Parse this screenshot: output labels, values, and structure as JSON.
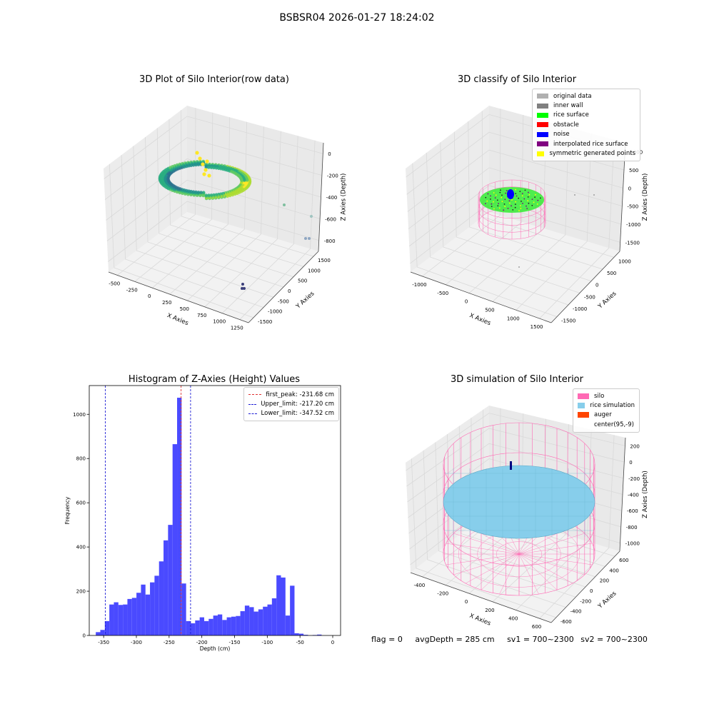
{
  "suptitle": "BSBSR04 2026-01-27 18:24:02",
  "footer": {
    "flag": "flag = 0",
    "avg": "avgDepth = 285 cm",
    "sv1": "sv1 = 700~2300",
    "sv2": "sv2 = 700~2300"
  },
  "colors": {
    "pane": "#f2f2f2",
    "grid": "#d9d9d9",
    "hist_bar": "#4a4aff",
    "peak_line": "#e03030",
    "limit_line": "#1f1fd6",
    "silo": "#ff69b4",
    "rice": "#87ceeb",
    "auger": "#ff4500"
  },
  "chart_data": [
    {
      "id": "raw",
      "type": "scatter",
      "title": "3D Plot of Silo Interior(row data)",
      "xlabel": "X Axies",
      "ylabel": "Y Axies",
      "zlabel": "Z Axies (Depth)",
      "xticks": [
        "-500",
        "-250",
        "0",
        "250",
        "500",
        "750",
        "1000",
        "1250"
      ],
      "yticks": [
        "-1500",
        "-1000",
        "-500",
        "0",
        "500",
        "1000",
        "1500"
      ],
      "zticks": [
        "-800",
        "-600",
        "-400",
        "-200",
        "0"
      ],
      "grid": true,
      "colormap": "viridis"
    },
    {
      "id": "classify",
      "type": "scatter",
      "title": "3D classify of Silo Interior",
      "xlabel": "X Axies",
      "ylabel": "Y Axies",
      "zlabel": "Z Axies (Depth)",
      "xticks": [
        "-1000",
        "-500",
        "0",
        "500",
        "1000",
        "1500"
      ],
      "yticks": [
        "-1500",
        "-1000",
        "-500",
        "0",
        "500",
        "1000"
      ],
      "zticks": [
        "-1500",
        "-1000",
        "-500",
        "0",
        "500",
        "1000"
      ],
      "grid": true,
      "legend": [
        {
          "label": "original data",
          "color": "#b0b0b0"
        },
        {
          "label": "inner wall",
          "color": "#808080"
        },
        {
          "label": "rice surface",
          "color": "#00ff00"
        },
        {
          "label": "obstacle",
          "color": "#ff0000"
        },
        {
          "label": "noise",
          "color": "#0000ff"
        },
        {
          "label": "interpolated rice surface",
          "color": "#800080"
        },
        {
          "label": "symmetric generated points",
          "color": "#ffff00"
        }
      ],
      "legend_placement": "top-right"
    },
    {
      "id": "hist",
      "type": "bar",
      "title": "Histogram of Z-Axies (Height) Values",
      "xlabel": "Depth (cm)",
      "ylabel": "Frequency",
      "xlim": [
        -372,
        12
      ],
      "ylim": [
        0,
        1130
      ],
      "xticks": [
        -350,
        -300,
        -250,
        -200,
        -150,
        -100,
        -50,
        0
      ],
      "yticks": [
        0,
        200,
        400,
        600,
        800,
        1000
      ],
      "bin_width": 6.9,
      "bins": [
        {
          "x0": -362,
          "count": 15
        },
        {
          "x0": -355.1,
          "count": 25
        },
        {
          "x0": -348.2,
          "count": 65
        },
        {
          "x0": -341.3,
          "count": 140
        },
        {
          "x0": -334.4,
          "count": 150
        },
        {
          "x0": -327.5,
          "count": 138
        },
        {
          "x0": -320.6,
          "count": 140
        },
        {
          "x0": -313.7,
          "count": 165
        },
        {
          "x0": -306.8,
          "count": 170
        },
        {
          "x0": -299.9,
          "count": 193
        },
        {
          "x0": -293,
          "count": 230
        },
        {
          "x0": -286.1,
          "count": 185
        },
        {
          "x0": -279.2,
          "count": 240
        },
        {
          "x0": -272.3,
          "count": 270
        },
        {
          "x0": -265.4,
          "count": 335
        },
        {
          "x0": -258.5,
          "count": 430
        },
        {
          "x0": -251.6,
          "count": 500
        },
        {
          "x0": -244.7,
          "count": 865
        },
        {
          "x0": -237.8,
          "count": 1075
        },
        {
          "x0": -230.9,
          "count": 235
        },
        {
          "x0": -224,
          "count": 65
        },
        {
          "x0": -217.1,
          "count": 55
        },
        {
          "x0": -210.2,
          "count": 68
        },
        {
          "x0": -203.3,
          "count": 82
        },
        {
          "x0": -196.4,
          "count": 65
        },
        {
          "x0": -189.5,
          "count": 75
        },
        {
          "x0": -182.6,
          "count": 90
        },
        {
          "x0": -175.7,
          "count": 95
        },
        {
          "x0": -168.8,
          "count": 70
        },
        {
          "x0": -161.9,
          "count": 82
        },
        {
          "x0": -155,
          "count": 85
        },
        {
          "x0": -148.1,
          "count": 88
        },
        {
          "x0": -141.2,
          "count": 110
        },
        {
          "x0": -134.3,
          "count": 135
        },
        {
          "x0": -127.4,
          "count": 128
        },
        {
          "x0": -120.5,
          "count": 108
        },
        {
          "x0": -113.6,
          "count": 118
        },
        {
          "x0": -106.7,
          "count": 130
        },
        {
          "x0": -99.8,
          "count": 140
        },
        {
          "x0": -92.9,
          "count": 168
        },
        {
          "x0": -86,
          "count": 272
        },
        {
          "x0": -79.1,
          "count": 262
        },
        {
          "x0": -72.2,
          "count": 90
        },
        {
          "x0": -65.3,
          "count": 225
        },
        {
          "x0": -58.4,
          "count": 10
        },
        {
          "x0": -51.5,
          "count": 8
        },
        {
          "x0": -44.6,
          "count": 3
        },
        {
          "x0": -37.7,
          "count": 0
        },
        {
          "x0": -30.8,
          "count": 2
        },
        {
          "x0": -23.9,
          "count": 4
        }
      ],
      "vlines": [
        {
          "label": "first_peak: -231.68 cm",
          "x": -231.68,
          "color": "#e03030"
        },
        {
          "label": "Upper_limit: -217.20 cm",
          "x": -217.2,
          "color": "#1f1fd6"
        },
        {
          "label": "Lower_limit: -347.52 cm",
          "x": -347.52,
          "color": "#1f1fd6"
        }
      ],
      "legend_placement": "top-right"
    },
    {
      "id": "sim",
      "type": "surface",
      "title": "3D simulation of Silo Interior",
      "xlabel": "X Axies",
      "ylabel": "Y Axies",
      "zlabel": "Z Axies (Depth)",
      "xticks": [
        "-400",
        "-200",
        "0",
        "200",
        "400",
        "600"
      ],
      "yticks": [
        "-600",
        "-400",
        "-200",
        "0",
        "200",
        "400",
        "600"
      ],
      "zticks": [
        "-1000",
        "-800",
        "-600",
        "-400",
        "-200",
        "0",
        "200"
      ],
      "grid": true,
      "legend": [
        {
          "label": "silo",
          "color": "#ff69b4"
        },
        {
          "label": "rice simulation",
          "color": "#87ceeb"
        },
        {
          "label": "auger",
          "color": "#ff4500"
        },
        {
          "label": "center(95,-9)",
          "color": ""
        }
      ],
      "legend_placement": "top-right"
    }
  ]
}
